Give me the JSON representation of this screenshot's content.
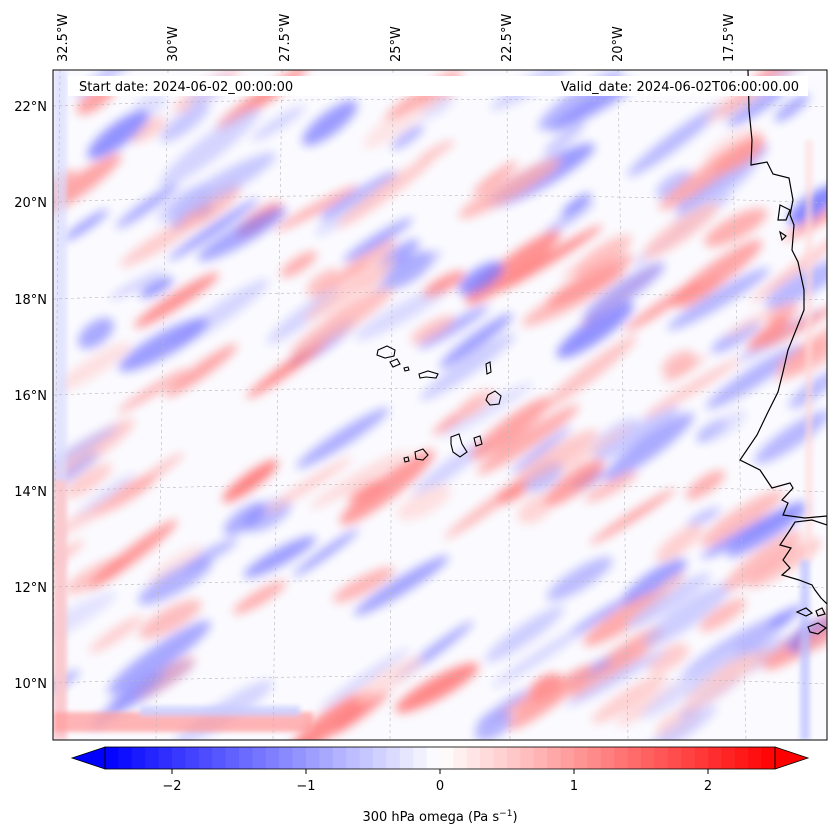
{
  "annotations": {
    "start_date": "Start date: 2024-06-02_00:00:00",
    "valid_date": "Valid_date: 2024-06-02T06:00:00.00"
  },
  "colorbar": {
    "label": "300 hPa omega (Pa s",
    "label_sup": "−1",
    "label_close": ")",
    "ticks": [
      "−2",
      "−1",
      "0",
      "1",
      "2"
    ],
    "tick_values": [
      -2,
      -1,
      0,
      1,
      2
    ],
    "range": [
      -2.5,
      2.5
    ],
    "extend": "both",
    "cmap": "bwr",
    "levels": 50
  },
  "map": {
    "projection": "lambert-like conic",
    "lon_labels": [
      "32.5°W",
      "30°W",
      "27.5°W",
      "25°W",
      "22.5°W",
      "20°W",
      "17.5°W"
    ],
    "lat_labels": [
      "22°N",
      "20°N",
      "18°N",
      "16°N",
      "14°N",
      "12°N",
      "10°N"
    ],
    "gridlines": true,
    "colors": {
      "negative": "#0000ff",
      "zero": "#ffffff",
      "positive": "#ff0000",
      "coast": "#000000",
      "grid": "#b0b0b0"
    }
  }
}
